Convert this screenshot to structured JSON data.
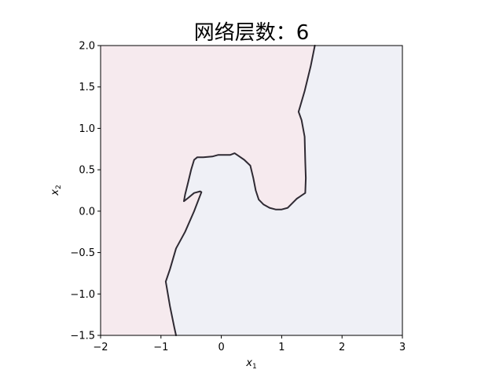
{
  "chart_data": {
    "type": "decision_boundary",
    "title": "网络层数：6",
    "xlabel": "x",
    "xlabel_sub": "1",
    "ylabel": "x",
    "ylabel_sub": "2",
    "xlim": [
      -2,
      3
    ],
    "ylim": [
      -1.5,
      2.0
    ],
    "xticks": [
      -2,
      -1,
      0,
      1,
      2,
      3
    ],
    "yticks": [
      -1.5,
      -1.0,
      -0.5,
      0.0,
      0.5,
      1.0,
      1.5,
      2.0
    ],
    "xtick_labels": [
      "−2",
      "−1",
      "0",
      "1",
      "2",
      "3"
    ],
    "ytick_labels": [
      "−1.5",
      "−1.0",
      "−0.5",
      "0.0",
      "0.5",
      "1.0",
      "1.5",
      "2.0"
    ],
    "grid": false,
    "colors": {
      "region_left": "#f6eaee",
      "region_right": "#eff0f6",
      "boundary": "#2f2a33"
    },
    "boundary": [
      [
        1.55,
        2.0
      ],
      [
        1.48,
        1.75
      ],
      [
        1.38,
        1.45
      ],
      [
        1.28,
        1.2
      ],
      [
        1.33,
        1.1
      ],
      [
        1.38,
        0.9
      ],
      [
        1.39,
        0.6
      ],
      [
        1.4,
        0.4
      ],
      [
        1.39,
        0.22
      ],
      [
        1.25,
        0.15
      ],
      [
        1.1,
        0.04
      ],
      [
        1.0,
        0.02
      ],
      [
        0.9,
        0.02
      ],
      [
        0.8,
        0.04
      ],
      [
        0.7,
        0.08
      ],
      [
        0.62,
        0.14
      ],
      [
        0.57,
        0.25
      ],
      [
        0.53,
        0.4
      ],
      [
        0.48,
        0.55
      ],
      [
        0.38,
        0.62
      ],
      [
        0.28,
        0.67
      ],
      [
        0.22,
        0.7
      ],
      [
        0.15,
        0.68
      ],
      [
        0.05,
        0.68
      ],
      [
        -0.05,
        0.68
      ],
      [
        -0.15,
        0.66
      ],
      [
        -0.3,
        0.65
      ],
      [
        -0.4,
        0.65
      ],
      [
        -0.45,
        0.62
      ],
      [
        -0.5,
        0.5
      ],
      [
        -0.55,
        0.35
      ],
      [
        -0.6,
        0.2
      ],
      [
        -0.62,
        0.12
      ],
      [
        -0.55,
        0.16
      ],
      [
        -0.45,
        0.22
      ],
      [
        -0.35,
        0.24
      ],
      [
        -0.33,
        0.23
      ],
      [
        -0.45,
        0.0
      ],
      [
        -0.6,
        -0.25
      ],
      [
        -0.75,
        -0.45
      ],
      [
        -0.85,
        -0.7
      ],
      [
        -0.92,
        -0.85
      ],
      [
        -0.85,
        -1.15
      ],
      [
        -0.78,
        -1.4
      ],
      [
        -0.75,
        -1.5
      ]
    ]
  }
}
